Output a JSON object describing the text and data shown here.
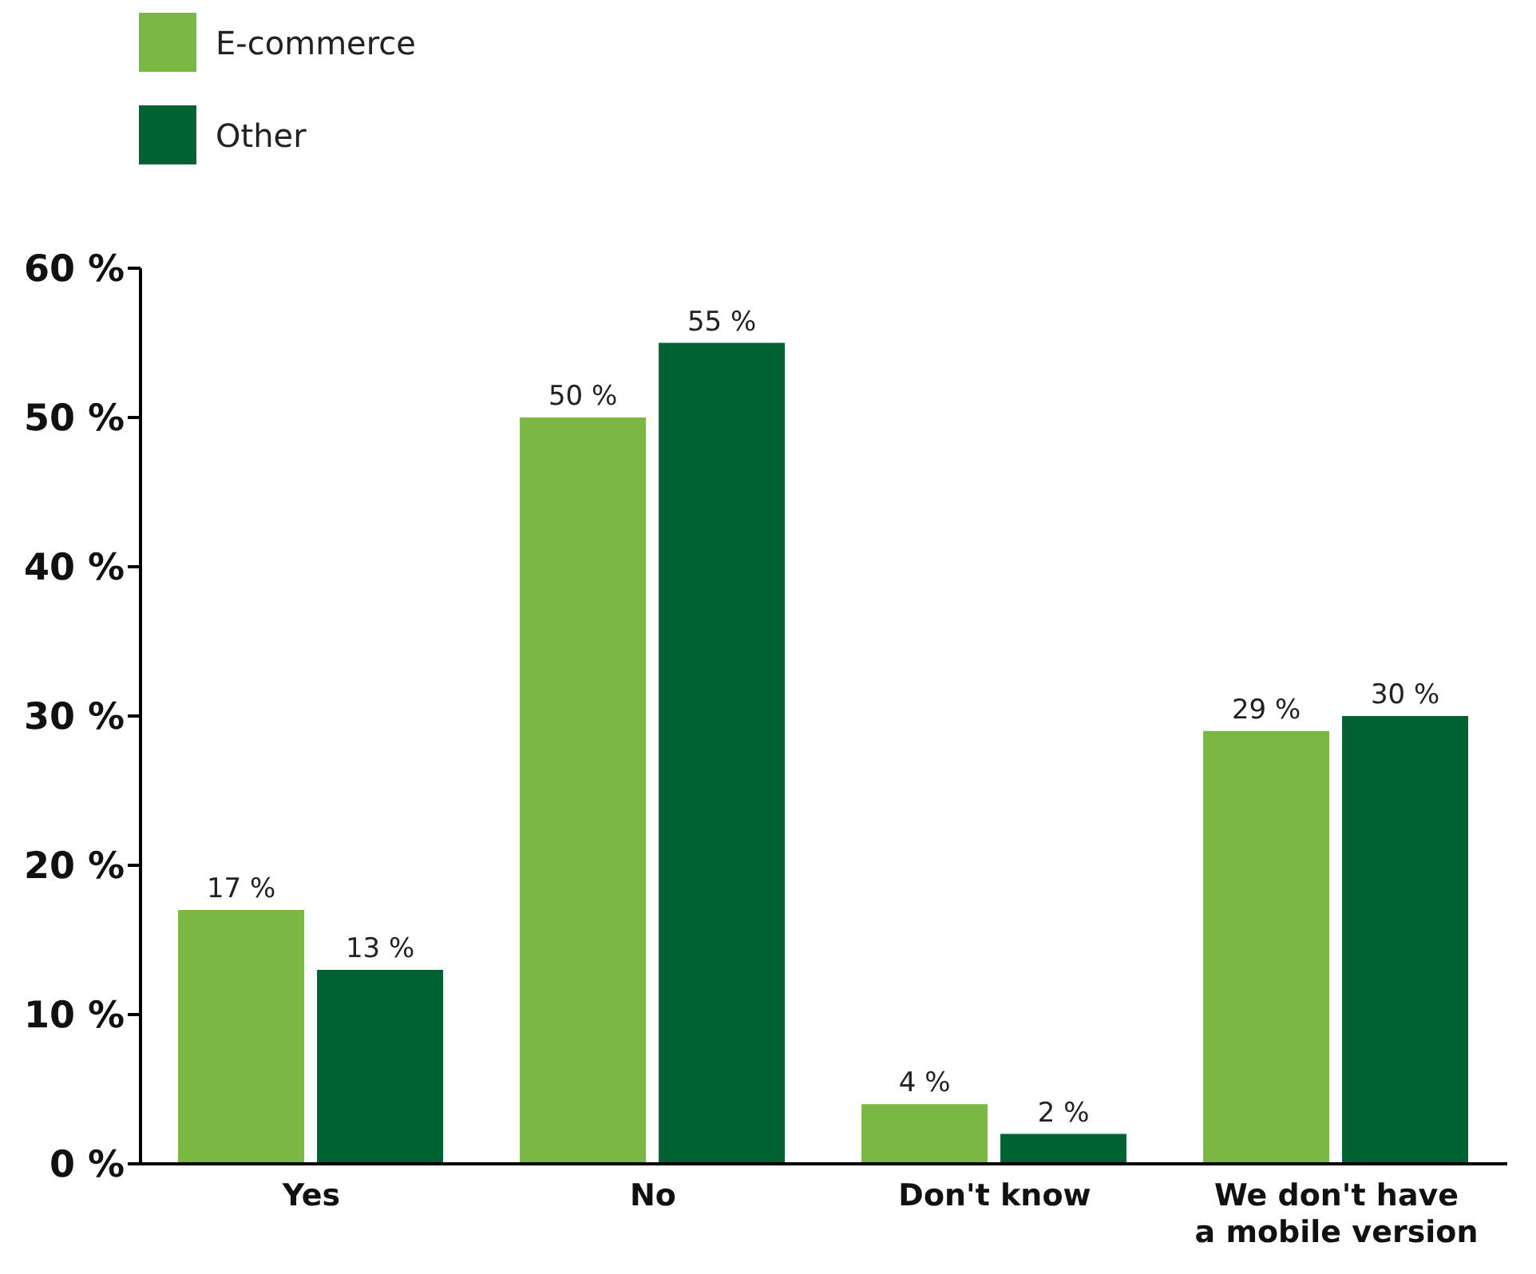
{
  "chart_data": {
    "type": "bar",
    "categories": [
      "Yes",
      "No",
      "Don't know",
      "We don't have a mobile version"
    ],
    "series": [
      {
        "name": "E-commerce",
        "color": "#7ab843",
        "values": [
          17,
          50,
          4,
          29
        ],
        "value_labels": [
          "17 %",
          "50 %",
          "4 %",
          "29 %"
        ]
      },
      {
        "name": "Other",
        "color": "#006233",
        "values": [
          13,
          55,
          2,
          30
        ],
        "value_labels": [
          "13 %",
          "55 %",
          "2 %",
          "30 %"
        ]
      }
    ],
    "ylim": [
      0,
      60
    ],
    "yticks": [
      {
        "value": 0,
        "label": "0 %"
      },
      {
        "value": 10,
        "label": "10 %"
      },
      {
        "value": 20,
        "label": "20 %"
      },
      {
        "value": 30,
        "label": "30 %"
      },
      {
        "value": 40,
        "label": "40 %"
      },
      {
        "value": 50,
        "label": "50 %"
      },
      {
        "value": 60,
        "label": "60 %"
      }
    ],
    "grid": false,
    "legend": "top left"
  }
}
